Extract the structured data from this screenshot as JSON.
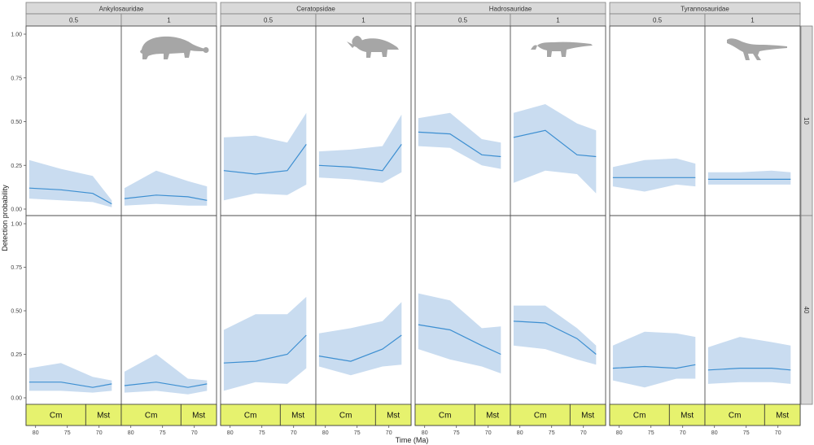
{
  "chart_data": {
    "type": "line",
    "ylabel": "Detection probability",
    "xlabel": "Time (Ma)",
    "ylim": [
      0,
      1
    ],
    "xlim": [
      81.5,
      66.5
    ],
    "x_ticks": [
      80,
      75,
      70
    ],
    "y_ticks": [
      "0.00",
      "0.25",
      "0.50",
      "0.75",
      "1.00"
    ],
    "families": [
      "Ankylosauridae",
      "Ceratopsidae",
      "Hadrosauridae",
      "Tyrannosauridae"
    ],
    "subgroups": [
      "0.5",
      "1"
    ],
    "row_labels": [
      "10",
      "40"
    ],
    "stages": [
      {
        "label": "Cm",
        "from": 81.5,
        "to": 72.1
      },
      {
        "label": "Mst",
        "from": 72.1,
        "to": 66.5
      }
    ],
    "grid": false,
    "line_color": "#3d8fd1",
    "ribbon_color": "#c9dcf0",
    "stage_color": "#e6f26e",
    "strip_color": "#d9d9d9",
    "silhouette_color": "#a6a6a6",
    "series": [
      {
        "row": "10",
        "family": "Ankylosauridae",
        "subgroup": "0.5",
        "x": [
          81,
          76,
          71,
          68
        ],
        "y": [
          0.12,
          0.11,
          0.09,
          0.03
        ],
        "lower": [
          0.06,
          0.05,
          0.04,
          0.01
        ],
        "upper": [
          0.28,
          0.23,
          0.19,
          0.05
        ]
      },
      {
        "row": "10",
        "family": "Ankylosauridae",
        "subgroup": "1",
        "x": [
          81,
          76,
          71,
          68
        ],
        "y": [
          0.06,
          0.08,
          0.07,
          0.05
        ],
        "lower": [
          0.02,
          0.03,
          0.02,
          0.02
        ],
        "upper": [
          0.12,
          0.22,
          0.16,
          0.13
        ]
      },
      {
        "row": "10",
        "family": "Ceratopsidae",
        "subgroup": "0.5",
        "x": [
          81,
          76,
          71,
          68
        ],
        "y": [
          0.22,
          0.2,
          0.22,
          0.37
        ],
        "lower": [
          0.05,
          0.09,
          0.08,
          0.14
        ],
        "upper": [
          0.41,
          0.42,
          0.38,
          0.55
        ]
      },
      {
        "row": "10",
        "family": "Ceratopsidae",
        "subgroup": "1",
        "x": [
          81,
          76,
          71,
          68
        ],
        "y": [
          0.25,
          0.24,
          0.22,
          0.37
        ],
        "lower": [
          0.18,
          0.17,
          0.15,
          0.21
        ],
        "upper": [
          0.33,
          0.34,
          0.36,
          0.54
        ]
      },
      {
        "row": "10",
        "family": "Hadrosauridae",
        "subgroup": "0.5",
        "x": [
          81,
          76,
          71,
          68
        ],
        "y": [
          0.44,
          0.43,
          0.31,
          0.3
        ],
        "lower": [
          0.36,
          0.35,
          0.25,
          0.23
        ],
        "upper": [
          0.52,
          0.55,
          0.4,
          0.38
        ]
      },
      {
        "row": "10",
        "family": "Hadrosauridae",
        "subgroup": "1",
        "x": [
          81,
          76,
          71,
          68
        ],
        "y": [
          0.41,
          0.45,
          0.31,
          0.3
        ],
        "lower": [
          0.15,
          0.22,
          0.2,
          0.09
        ],
        "upper": [
          0.55,
          0.6,
          0.49,
          0.45
        ]
      },
      {
        "row": "10",
        "family": "Tyrannosauridae",
        "subgroup": "0.5",
        "x": [
          81,
          76,
          71,
          68
        ],
        "y": [
          0.18,
          0.18,
          0.18,
          0.18
        ],
        "lower": [
          0.13,
          0.1,
          0.14,
          0.13
        ],
        "upper": [
          0.24,
          0.28,
          0.29,
          0.26
        ]
      },
      {
        "row": "10",
        "family": "Tyrannosauridae",
        "subgroup": "1",
        "x": [
          81,
          76,
          71,
          68
        ],
        "y": [
          0.17,
          0.17,
          0.17,
          0.17
        ],
        "lower": [
          0.14,
          0.14,
          0.14,
          0.14
        ],
        "upper": [
          0.21,
          0.21,
          0.22,
          0.21
        ]
      },
      {
        "row": "40",
        "family": "Ankylosauridae",
        "subgroup": "0.5",
        "x": [
          81,
          76,
          71,
          68
        ],
        "y": [
          0.09,
          0.09,
          0.06,
          0.08
        ],
        "lower": [
          0.04,
          0.04,
          0.03,
          0.04
        ],
        "upper": [
          0.17,
          0.2,
          0.12,
          0.1
        ]
      },
      {
        "row": "40",
        "family": "Ankylosauridae",
        "subgroup": "1",
        "x": [
          81,
          76,
          71,
          68
        ],
        "y": [
          0.07,
          0.09,
          0.06,
          0.08
        ],
        "lower": [
          0.03,
          0.04,
          0.02,
          0.04
        ],
        "upper": [
          0.15,
          0.25,
          0.11,
          0.1
        ]
      },
      {
        "row": "40",
        "family": "Ceratopsidae",
        "subgroup": "0.5",
        "x": [
          81,
          76,
          71,
          68
        ],
        "y": [
          0.2,
          0.21,
          0.25,
          0.36
        ],
        "lower": [
          0.04,
          0.09,
          0.08,
          0.17
        ],
        "upper": [
          0.39,
          0.48,
          0.48,
          0.58
        ]
      },
      {
        "row": "40",
        "family": "Ceratopsidae",
        "subgroup": "1",
        "x": [
          81,
          76,
          71,
          68
        ],
        "y": [
          0.24,
          0.21,
          0.28,
          0.36
        ],
        "lower": [
          0.18,
          0.13,
          0.18,
          0.19
        ],
        "upper": [
          0.37,
          0.4,
          0.44,
          0.55
        ]
      },
      {
        "row": "40",
        "family": "Hadrosauridae",
        "subgroup": "0.5",
        "x": [
          81,
          76,
          71,
          68
        ],
        "y": [
          0.42,
          0.39,
          0.3,
          0.25
        ],
        "lower": [
          0.28,
          0.22,
          0.18,
          0.14
        ],
        "upper": [
          0.6,
          0.56,
          0.4,
          0.41
        ]
      },
      {
        "row": "40",
        "family": "Hadrosauridae",
        "subgroup": "1",
        "x": [
          81,
          76,
          71,
          68
        ],
        "y": [
          0.44,
          0.43,
          0.34,
          0.25
        ],
        "lower": [
          0.3,
          0.28,
          0.22,
          0.19
        ],
        "upper": [
          0.53,
          0.53,
          0.4,
          0.3
        ]
      },
      {
        "row": "40",
        "family": "Tyrannosauridae",
        "subgroup": "0.5",
        "x": [
          81,
          76,
          71,
          68
        ],
        "y": [
          0.17,
          0.18,
          0.17,
          0.19
        ],
        "lower": [
          0.1,
          0.06,
          0.11,
          0.11
        ],
        "upper": [
          0.3,
          0.38,
          0.37,
          0.35
        ]
      },
      {
        "row": "40",
        "family": "Tyrannosauridae",
        "subgroup": "1",
        "x": [
          81,
          76,
          71,
          68
        ],
        "y": [
          0.16,
          0.17,
          0.17,
          0.16
        ],
        "lower": [
          0.08,
          0.09,
          0.09,
          0.08
        ],
        "upper": [
          0.29,
          0.35,
          0.32,
          0.3
        ]
      }
    ]
  }
}
